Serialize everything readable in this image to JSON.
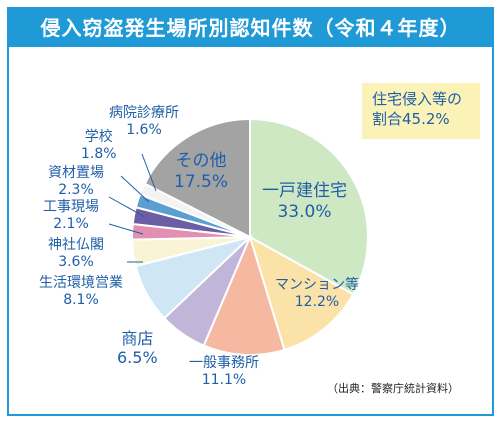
{
  "title": "侵入窃盗発生場所別認知件数（令和４年度）",
  "note": {
    "line1": "住宅侵入等の",
    "line2": "割合45.2%"
  },
  "source": "（出典：警察庁統計資料）",
  "chart_data": {
    "type": "pie",
    "title": "侵入窃盗発生場所別認知件数（令和４年度）",
    "start": "12 o'clock",
    "direction": "clockwise",
    "slices": [
      {
        "label": "一戸建住宅",
        "value_text": "33.0%",
        "value": 33.0,
        "color": "#cde8c3"
      },
      {
        "label": "マンション等",
        "value_text": "12.2%",
        "value": 12.2,
        "color": "#fbe2a9"
      },
      {
        "label": "一般事務所",
        "value_text": "11.1%",
        "value": 11.1,
        "color": "#f5b8a1"
      },
      {
        "label": "商店",
        "value_text": "6.5%",
        "value": 6.5,
        "color": "#c1b5da"
      },
      {
        "label": "生活環境営業",
        "value_text": "8.1%",
        "value": 8.1,
        "color": "#cfe7f4"
      },
      {
        "label": "神社仏閣",
        "value_text": "3.6%",
        "value": 3.6,
        "color": "#f9f4d6"
      },
      {
        "label": "工事現場",
        "value_text": "2.1%",
        "value": 2.1,
        "color": "#e290b2"
      },
      {
        "label": "資材置場",
        "value_text": "2.3%",
        "value": 2.3,
        "color": "#6b5ea4"
      },
      {
        "label": "学校",
        "value_text": "1.8%",
        "value": 1.8,
        "color": "#5a9fcf"
      },
      {
        "label": "病院診療所",
        "value_text": "1.6%",
        "value": 1.6,
        "color": "#f3f3f3"
      },
      {
        "label": "その他",
        "value_text": "17.5%",
        "value": 17.5,
        "color": "#a3a3a3"
      }
    ]
  }
}
